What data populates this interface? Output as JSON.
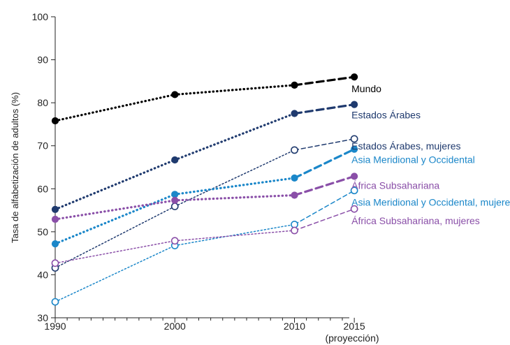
{
  "chart_data": {
    "type": "line",
    "ylabel": "Tasa de alfabetización de adultos (%)",
    "xlabel": "",
    "ylim": [
      30,
      100
    ],
    "y_ticks": [
      "30",
      "40",
      "50",
      "60",
      "70",
      "80",
      "90",
      "100"
    ],
    "x_ticks": [
      {
        "label": "1990",
        "x": 1990
      },
      {
        "label": "2000",
        "x": 2000
      },
      {
        "label": "2010",
        "x": 2010
      },
      {
        "label": "2015",
        "x": 2015
      }
    ],
    "x_note": "(proyección)",
    "grid": false,
    "series": [
      {
        "name": "Mundo",
        "color": "#000000",
        "filled": true,
        "bold": true,
        "x": [
          1990,
          2000,
          2010,
          2015
        ],
        "values": [
          75.8,
          81.9,
          84.1,
          86.0
        ]
      },
      {
        "name": "Estados Árabes",
        "color": "#1f3a6e",
        "filled": true,
        "bold": true,
        "x": [
          1990,
          2000,
          2010,
          2015
        ],
        "values": [
          55.2,
          66.7,
          77.5,
          79.6
        ]
      },
      {
        "name": "Estados Árabes, mujeres",
        "color": "#1f3a6e",
        "filled": false,
        "bold": false,
        "x": [
          1990,
          2000,
          2010,
          2015
        ],
        "values": [
          41.6,
          55.9,
          69.0,
          71.6
        ]
      },
      {
        "name": "Asia Meridional y Occidental",
        "color": "#1b87c9",
        "filled": true,
        "bold": true,
        "x": [
          1990,
          2000,
          2010,
          2015
        ],
        "values": [
          47.2,
          58.7,
          62.5,
          69.2
        ]
      },
      {
        "name": "África Subsahariana",
        "color": "#8a4fa8",
        "filled": true,
        "bold": true,
        "x": [
          1990,
          2000,
          2010,
          2015
        ],
        "values": [
          52.9,
          57.3,
          58.5,
          62.9
        ]
      },
      {
        "name": "Asia Meridional y Occidental, mujeres",
        "color": "#1b87c9",
        "filled": false,
        "bold": false,
        "x": [
          1990,
          2000,
          2010,
          2015
        ],
        "values": [
          33.7,
          46.8,
          51.7,
          59.6
        ]
      },
      {
        "name": "África Subsahariana, mujeres",
        "color": "#8a4fa8",
        "filled": false,
        "bold": false,
        "x": [
          1990,
          2000,
          2010,
          2015
        ],
        "values": [
          42.7,
          47.9,
          50.3,
          55.3
        ]
      }
    ]
  }
}
